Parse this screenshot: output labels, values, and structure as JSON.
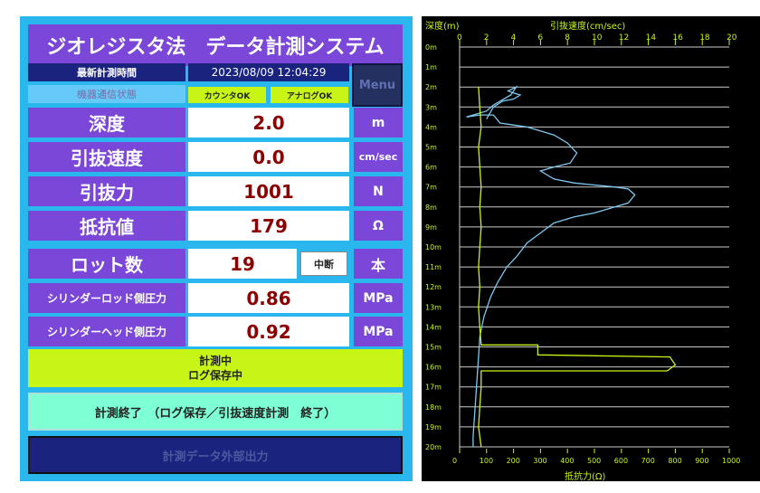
{
  "title": "ジオレジスタ法　データ計測システム",
  "latest_time": {
    "label": "最新計測時間",
    "value": "2023/08/09 12:04:29"
  },
  "menu_label": "Menu",
  "comm": {
    "label": "機器通信状態",
    "counter": "カウンタOK",
    "analog": "アナログOK"
  },
  "rows": [
    {
      "label": "深度",
      "value": "2.0",
      "unit": "m"
    },
    {
      "label": "引抜速度",
      "value": "0.0",
      "unit": "cm/sec"
    },
    {
      "label": "引抜力",
      "value": "1001",
      "unit": "N"
    },
    {
      "label": "抵抗値",
      "value": "179",
      "unit": "Ω"
    }
  ],
  "rod": {
    "label": "ロット数",
    "value": "19",
    "pause": "中断",
    "unit": "本"
  },
  "pressure": [
    {
      "label": "シリンダーロッド側圧力",
      "value": "0.86",
      "unit": "MPa"
    },
    {
      "label": "シリンダーヘッド側圧力",
      "value": "0.92",
      "unit": "MPa"
    }
  ],
  "status": {
    "line1": "計測中",
    "line2": "ログ保存中"
  },
  "end_button": "計測終了　（ログ保存／引抜速度計測　終了）",
  "export_button": "計測データ外部出力",
  "colors": {
    "panel": "#2ab7ee",
    "purple": "#7b47d9",
    "navy": "#1a237e",
    "lime": "#c7f516",
    "value_red": "#8b0000"
  },
  "chart_data": {
    "type": "line",
    "depth_label": "深度(m)",
    "speed_label": "引抜速度(cm/sec)",
    "resistance_label": "抵抗力(Ω)",
    "depth_ticks": [
      "0m",
      "1m",
      "2m",
      "3m",
      "4m",
      "5m",
      "6m",
      "7m",
      "8m",
      "9m",
      "10m",
      "11m",
      "12m",
      "13m",
      "14m",
      "15m",
      "16m",
      "17m",
      "18m",
      "19m",
      "20m"
    ],
    "speed_ticks": [
      "0",
      "2",
      "4",
      "6",
      "8",
      "10",
      "12",
      "14",
      "16",
      "18",
      "20"
    ],
    "resistance_ticks": [
      "0",
      "100",
      "200",
      "300",
      "400",
      "500",
      "600",
      "700",
      "800",
      "900",
      "1000"
    ],
    "ylim": [
      0,
      20
    ],
    "speed_xlim": [
      0,
      20
    ],
    "resistance_xlim": [
      0,
      1000
    ],
    "series": [
      {
        "name": "引抜速度(cm/sec)",
        "color": "#7ec8f0",
        "points": [
          [
            2,
            3.6
          ],
          [
            2.5,
            3.0
          ],
          [
            3.2,
            2.7
          ],
          [
            4.0,
            2.6
          ],
          [
            4.5,
            2.4
          ],
          [
            4.0,
            2.3
          ],
          [
            3.6,
            2.2
          ],
          [
            4.2,
            2.0
          ],
          [
            3.8,
            2.4
          ],
          [
            2.5,
            2.9
          ],
          [
            2.0,
            3.2
          ],
          [
            1.0,
            3.4
          ],
          [
            0.5,
            3.5
          ],
          [
            1.5,
            3.4
          ],
          [
            2.5,
            3.4
          ],
          [
            3.0,
            3.8
          ],
          [
            4.0,
            3.9
          ],
          [
            5.0,
            4.0
          ],
          [
            6.0,
            4.2
          ],
          [
            7.0,
            4.4
          ],
          [
            8.0,
            4.8
          ],
          [
            8.7,
            5.3
          ],
          [
            8.2,
            5.8
          ],
          [
            7.0,
            6.0
          ],
          [
            6.0,
            6.2
          ],
          [
            7.0,
            6.6
          ],
          [
            8.5,
            6.8
          ],
          [
            10.0,
            6.9
          ],
          [
            11.5,
            7.0
          ],
          [
            12.5,
            7.1
          ],
          [
            13.0,
            7.4
          ],
          [
            12.5,
            7.8
          ],
          [
            11.0,
            8.1
          ],
          [
            10.0,
            8.3
          ],
          [
            8.5,
            8.5
          ],
          [
            7.0,
            8.8
          ],
          [
            6.0,
            9.3
          ],
          [
            5.0,
            9.8
          ],
          [
            4.2,
            10.5
          ],
          [
            3.5,
            11.0
          ],
          [
            2.8,
            11.8
          ],
          [
            2.3,
            12.5
          ],
          [
            1.8,
            13.5
          ],
          [
            1.5,
            14.5
          ],
          [
            1.4,
            15.5
          ],
          [
            1.3,
            16.5
          ],
          [
            1.2,
            17.5
          ],
          [
            1.1,
            18.5
          ],
          [
            1.0,
            19.5
          ],
          [
            1.0,
            20.0
          ]
        ]
      },
      {
        "name": "抵抗力(Ω)",
        "color": "#c7f516",
        "points": [
          [
            70,
            2
          ],
          [
            75,
            3
          ],
          [
            80,
            4
          ],
          [
            70,
            5
          ],
          [
            75,
            6
          ],
          [
            80,
            7
          ],
          [
            75,
            8
          ],
          [
            80,
            9
          ],
          [
            75,
            10
          ],
          [
            70,
            11
          ],
          [
            75,
            12
          ],
          [
            70,
            13
          ],
          [
            75,
            14
          ],
          [
            80,
            14.9
          ],
          [
            290,
            14.9
          ],
          [
            290,
            15.4
          ],
          [
            780,
            15.5
          ],
          [
            800,
            15.9
          ],
          [
            770,
            16.2
          ],
          [
            80,
            16.2
          ],
          [
            80,
            17
          ],
          [
            75,
            18
          ],
          [
            70,
            19
          ],
          [
            80,
            20
          ]
        ]
      }
    ],
    "grid": true
  }
}
